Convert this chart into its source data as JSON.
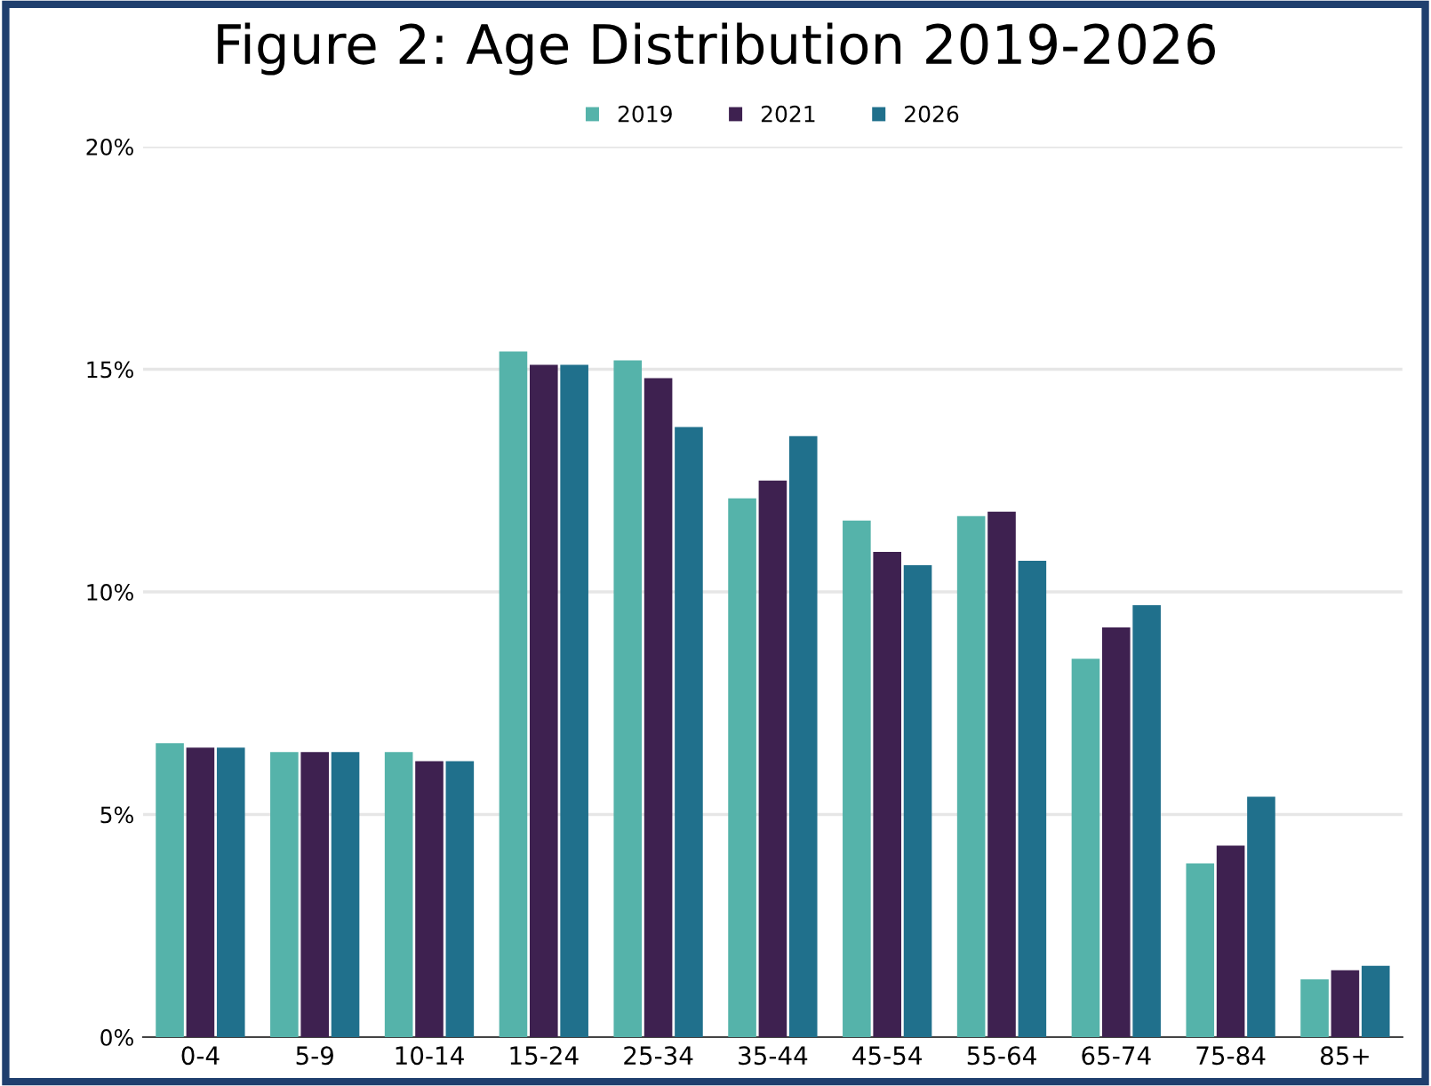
{
  "chart_data": {
    "type": "bar",
    "title": "Figure 2: Age Distribution 2019-2026",
    "categories": [
      "0-4",
      "5-9",
      "10-14",
      "15-24",
      "25-34",
      "35-44",
      "45-54",
      "55-64",
      "65-74",
      "75-84",
      "85+"
    ],
    "series": [
      {
        "name": "2019",
        "color": "#55b3aa",
        "values": [
          6.6,
          6.4,
          6.4,
          15.4,
          15.2,
          12.1,
          11.6,
          11.7,
          8.5,
          3.9,
          1.3
        ]
      },
      {
        "name": "2021",
        "color": "#3e2150",
        "values": [
          6.5,
          6.4,
          6.2,
          15.1,
          14.8,
          12.5,
          10.9,
          11.8,
          9.2,
          4.3,
          1.5
        ]
      },
      {
        "name": "2026",
        "color": "#20708c",
        "values": [
          6.5,
          6.4,
          6.2,
          15.1,
          13.7,
          13.5,
          10.6,
          10.7,
          9.7,
          5.4,
          1.6
        ]
      }
    ],
    "ylim": [
      0,
      20
    ],
    "yticks": [
      {
        "value": 0,
        "label": "0%"
      },
      {
        "value": 5,
        "label": "5%"
      },
      {
        "value": 10,
        "label": "10%"
      },
      {
        "value": 15,
        "label": "15%"
      },
      {
        "value": 20,
        "label": "20%"
      }
    ],
    "grid": "y",
    "legend": "top"
  }
}
